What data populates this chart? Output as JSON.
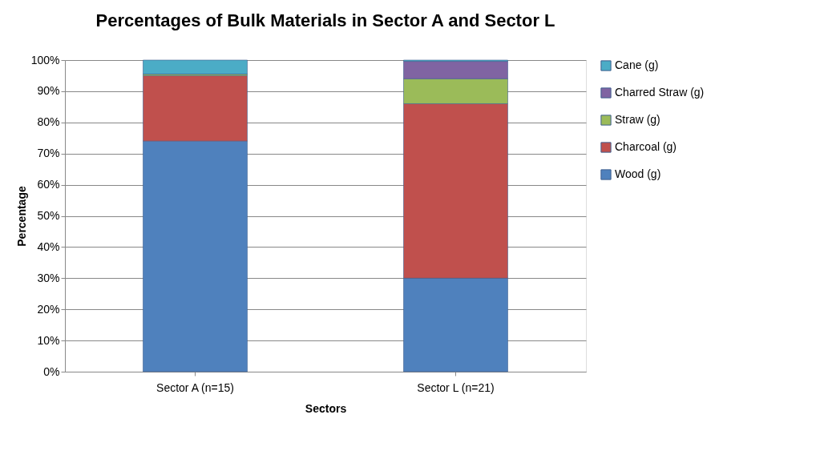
{
  "chart_data": {
    "type": "bar",
    "stacked": true,
    "title": "Percentages of Bulk Materials in Sector A and Sector L",
    "xlabel": "Sectors",
    "ylabel": "Percentage",
    "categories": [
      "Sector A (n=15)",
      "Sector L (n=21)"
    ],
    "series": [
      {
        "name": "Wood (g)",
        "color": "#4f81bd",
        "values": [
          74,
          30
        ]
      },
      {
        "name": "Charcoal (g)",
        "color": "#c0504d",
        "values": [
          21,
          56
        ]
      },
      {
        "name": "Straw (g)",
        "color": "#9bbb59",
        "values": [
          0.5,
          8
        ]
      },
      {
        "name": "Charred Straw (g)",
        "color": "#8064a2",
        "values": [
          0,
          5.6
        ]
      },
      {
        "name": "Cane (g)",
        "color": "#4bacc6",
        "values": [
          4.5,
          0.4
        ]
      }
    ],
    "ylim": [
      0,
      100
    ],
    "yticks": [
      {
        "value": 0,
        "label": "0%"
      },
      {
        "value": 10,
        "label": "10%"
      },
      {
        "value": 20,
        "label": "20%"
      },
      {
        "value": 30,
        "label": "30%"
      },
      {
        "value": 40,
        "label": "40%"
      },
      {
        "value": 50,
        "label": "50%"
      },
      {
        "value": 60,
        "label": "60%"
      },
      {
        "value": 70,
        "label": "70%"
      },
      {
        "value": 80,
        "label": "80%"
      },
      {
        "value": 90,
        "label": "90%"
      },
      {
        "value": 100,
        "label": "100%"
      }
    ],
    "grid": "y",
    "legend": "right"
  }
}
